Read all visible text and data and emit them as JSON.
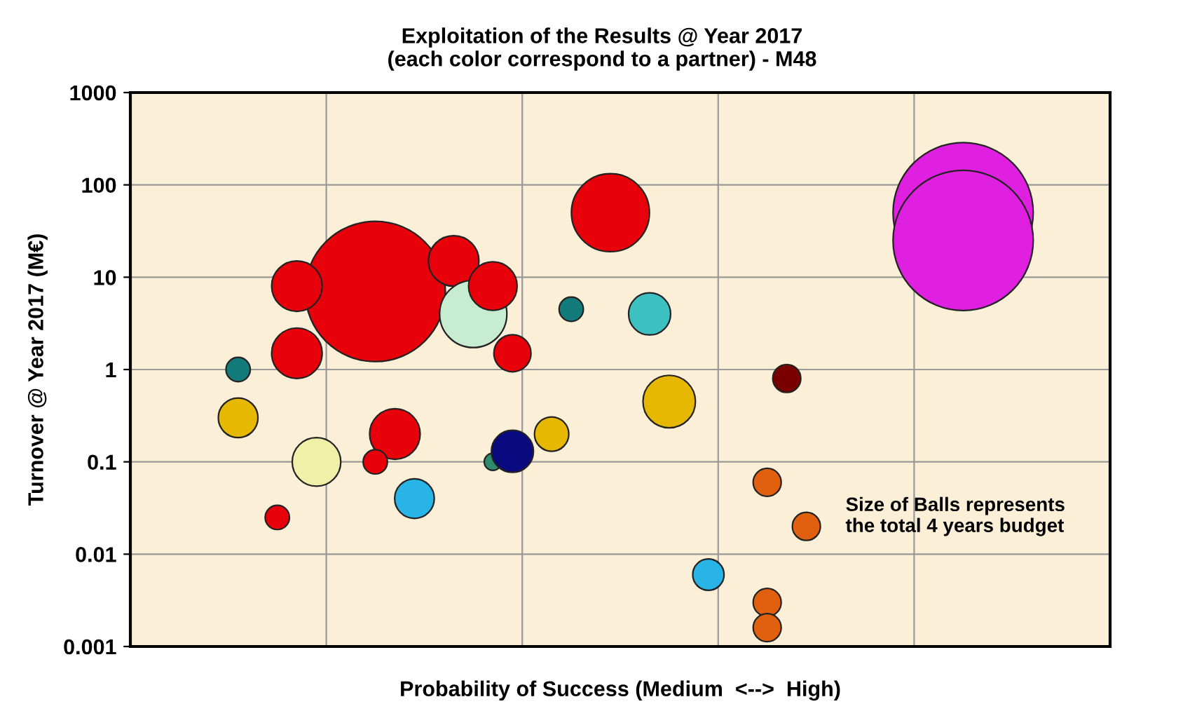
{
  "chart_data": {
    "type": "bubble",
    "title": "Exploitation of the Results @ Year 2017\n(each color correspond to a partner) - M48",
    "xlabel": "Probability of Success (Medium  <-->  High)",
    "ylabel": "Turnover @ Year 2017 (M€)",
    "categories": [
      null,
      null,
      null,
      null,
      null,
      null,
      null,
      null,
      null,
      null,
      null,
      null,
      null,
      null,
      null,
      null,
      null,
      null,
      null,
      null,
      null,
      null,
      null,
      null,
      null,
      null,
      null,
      null,
      null,
      null,
      null,
      null,
      null,
      null,
      null,
      null,
      null,
      null,
      null,
      null,
      null,
      null,
      null,
      null,
      null,
      null,
      null,
      null,
      null,
      null
    ],
    "series": [
      {
        "values": [
          null,
          null,
          null,
          null,
          null,
          1.0,
          null,
          0.025,
          1.5,
          0.1,
          null,
          null,
          7,
          0.2,
          0.04,
          null,
          15,
          4,
          8,
          1.5,
          null,
          0.2,
          4.5,
          null,
          50,
          null,
          4,
          0.45,
          null,
          0.006,
          null,
          null,
          0.06,
          0.8,
          0.02,
          null,
          null,
          null,
          null,
          null,
          null,
          null,
          50,
          null,
          null,
          null,
          null,
          null,
          null,
          null
        ],
        "sizes": [
          null,
          null,
          null,
          null,
          null,
          0.03,
          null,
          0.03,
          0.13,
          0.12,
          null,
          null,
          1,
          0.13,
          0.08,
          null,
          0.13,
          0.23,
          0.12,
          0.07,
          null,
          0.06,
          0.03,
          null,
          0.31,
          null,
          0.09,
          0.14,
          null,
          0.05,
          null,
          null,
          0.04,
          0.04,
          0.04,
          null,
          null,
          null,
          null,
          null,
          null,
          null,
          1,
          null,
          null,
          null,
          null,
          null,
          null,
          null
        ],
        "colors": [
          null,
          null,
          null,
          null,
          null,
          "#137a7a",
          null,
          "#e8000b",
          "#e8000b",
          "#f0f0a8",
          null,
          null,
          "#e8000b",
          "#e8000b",
          "#28b4e6",
          null,
          "#e8000b",
          "#c8ecd0",
          "#e8000b",
          "#e8000b",
          null,
          "#e6b800",
          "#137a7a",
          null,
          "#e8000b",
          null,
          "#3cc0c0",
          "#e6b800",
          null,
          "#28b4e6",
          null,
          null,
          "#e06010",
          "#7a0000",
          "#e06010",
          null,
          null,
          null,
          null,
          null,
          null,
          null,
          "#e020e0",
          null,
          null,
          null,
          null,
          null,
          null,
          null
        ]
      },
      {
        "values": [
          null,
          null,
          null,
          null,
          null,
          0.3,
          null,
          null,
          8,
          null,
          null,
          null,
          0.1,
          null,
          null,
          null,
          null,
          null,
          0.1,
          0.13,
          null,
          null,
          null,
          null,
          null,
          null,
          null,
          null,
          null,
          null,
          null,
          null,
          0.003,
          null,
          null,
          null,
          null,
          null,
          null,
          null,
          null,
          null,
          25,
          null,
          null,
          null,
          null,
          null,
          null,
          null
        ],
        "sizes": [
          null,
          null,
          null,
          null,
          null,
          0.08,
          null,
          null,
          0.13,
          null,
          null,
          null,
          0.03,
          null,
          null,
          null,
          null,
          null,
          0.015,
          0.09,
          null,
          null,
          null,
          null,
          null,
          null,
          null,
          null,
          null,
          null,
          null,
          null,
          0.04,
          null,
          null,
          null,
          null,
          null,
          null,
          null,
          null,
          null,
          1,
          null,
          null,
          null,
          null,
          null,
          null,
          null
        ],
        "colors": [
          null,
          null,
          null,
          null,
          null,
          "#e6b800",
          null,
          null,
          "#e8000b",
          null,
          null,
          null,
          "#e8000b",
          null,
          null,
          null,
          null,
          null,
          "#2e8b6e",
          "#0a0a80",
          null,
          null,
          null,
          null,
          null,
          null,
          null,
          null,
          null,
          null,
          null,
          null,
          "#e06010",
          null,
          null,
          null,
          null,
          null,
          null,
          null,
          null,
          null,
          "#e020e0",
          null,
          null,
          null,
          null,
          null,
          null,
          null
        ]
      },
      {
        "values": [
          null,
          null,
          null,
          null,
          null,
          null,
          null,
          null,
          null,
          null,
          null,
          null,
          null,
          null,
          null,
          null,
          null,
          null,
          null,
          null,
          null,
          null,
          null,
          null,
          null,
          null,
          null,
          null,
          null,
          null,
          null,
          null,
          0.0016,
          null,
          null,
          null,
          null,
          null,
          null,
          null,
          null,
          null,
          null,
          null,
          null,
          null,
          null,
          null,
          null,
          null
        ],
        "sizes": [
          null,
          null,
          null,
          null,
          null,
          null,
          null,
          null,
          null,
          null,
          null,
          null,
          null,
          null,
          null,
          null,
          null,
          null,
          null,
          null,
          null,
          null,
          null,
          null,
          null,
          null,
          null,
          null,
          null,
          null,
          null,
          null,
          0.04,
          null,
          null,
          null,
          null,
          null,
          null,
          null,
          null,
          null,
          null,
          null,
          null,
          null,
          null,
          null,
          null,
          null
        ],
        "colors": [
          null,
          null,
          null,
          null,
          null,
          null,
          null,
          null,
          null,
          null,
          null,
          null,
          null,
          null,
          null,
          null,
          null,
          null,
          null,
          null,
          null,
          null,
          null,
          null,
          null,
          null,
          null,
          null,
          null,
          null,
          null,
          null,
          "#e06010",
          null,
          null,
          null,
          null,
          null,
          null,
          null,
          null,
          null,
          null,
          null,
          null,
          null,
          null,
          null,
          null,
          null
        ]
      }
    ],
    "ylim": [
      0.001,
      1000
    ],
    "yticks": [
      0.001,
      0.01,
      0.1,
      1,
      10,
      100,
      1000
    ],
    "log": "y",
    "grid": true,
    "annotations": [
      "Size of Balls represents\nthe total 4 years budget"
    ]
  }
}
